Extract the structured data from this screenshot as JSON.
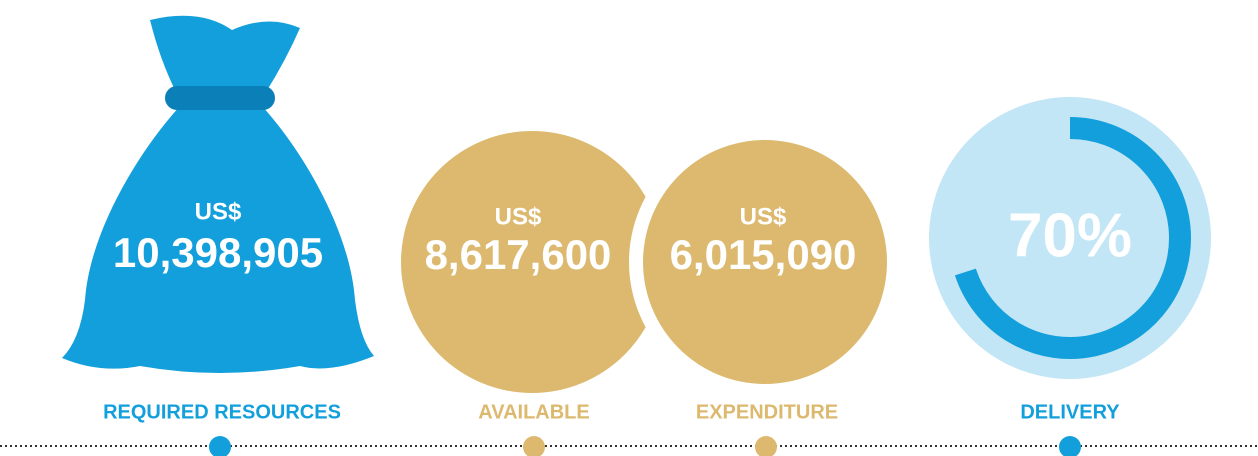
{
  "items": [
    {
      "currency": "US$",
      "amount": "10,398,905",
      "label": "REQUIRED RESOURCES"
    },
    {
      "currency": "US$",
      "amount": "8,617,600",
      "label": "AVAILABLE"
    },
    {
      "currency": "US$",
      "amount": "6,015,090",
      "label": "EXPENDITURE"
    }
  ],
  "delivery": {
    "value": 70,
    "value_label": "70%",
    "label": "DELIVERY"
  }
}
